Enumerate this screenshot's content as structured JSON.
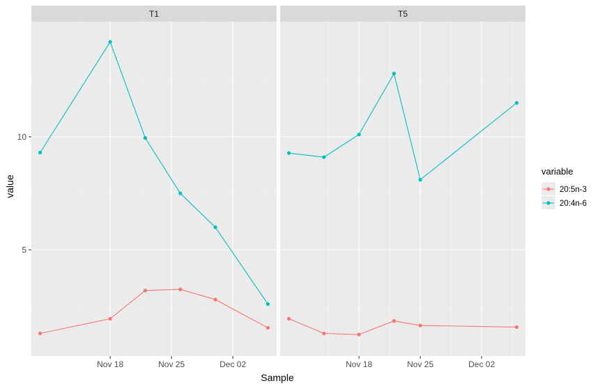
{
  "chart_data": {
    "type": "line",
    "xlabel": "Sample",
    "ylabel": "value",
    "legend_title": "variable",
    "legend_position": "right",
    "grid": true,
    "x_type": "date",
    "xlim": [
      "2021-11-09",
      "2021-12-07"
    ],
    "ylim": [
      0.3,
      15.1
    ],
    "x_ticks": [
      {
        "date": "2021-11-18",
        "label": "Nov 18"
      },
      {
        "date": "2021-11-25",
        "label": "Nov 25"
      },
      {
        "date": "2021-12-02",
        "label": "Dec 02"
      }
    ],
    "y_ticks": [
      {
        "value": 5,
        "label": "5"
      },
      {
        "value": 10,
        "label": "10"
      }
    ],
    "panels": [
      {
        "label": "T1",
        "series": [
          {
            "name": "20:5n-3",
            "color": "#F8766D",
            "points": [
              {
                "x": "2021-11-10",
                "y": 1.3
              },
              {
                "x": "2021-11-18",
                "y": 1.95
              },
              {
                "x": "2021-11-22",
                "y": 3.2
              },
              {
                "x": "2021-11-26",
                "y": 3.25
              },
              {
                "x": "2021-11-30",
                "y": 2.8
              },
              {
                "x": "2021-12-06",
                "y": 1.55
              }
            ]
          },
          {
            "name": "20:4n-6",
            "color": "#00BFC4",
            "points": [
              {
                "x": "2021-11-10",
                "y": 9.3
              },
              {
                "x": "2021-11-18",
                "y": 14.2
              },
              {
                "x": "2021-11-22",
                "y": 9.95
              },
              {
                "x": "2021-11-26",
                "y": 7.5
              },
              {
                "x": "2021-11-30",
                "y": 6.0
              },
              {
                "x": "2021-12-06",
                "y": 2.6
              }
            ]
          }
        ]
      },
      {
        "label": "T5",
        "series": [
          {
            "name": "20:5n-3",
            "color": "#F8766D",
            "points": [
              {
                "x": "2021-11-10",
                "y": 1.95
              },
              {
                "x": "2021-11-14",
                "y": 1.3
              },
              {
                "x": "2021-11-18",
                "y": 1.25
              },
              {
                "x": "2021-11-22",
                "y": 1.85
              },
              {
                "x": "2021-11-25",
                "y": 1.65
              },
              {
                "x": "2021-12-06",
                "y": 1.58
              }
            ]
          },
          {
            "name": "20:4n-6",
            "color": "#00BFC4",
            "points": [
              {
                "x": "2021-11-10",
                "y": 9.28
              },
              {
                "x": "2021-11-14",
                "y": 9.1
              },
              {
                "x": "2021-11-18",
                "y": 10.1
              },
              {
                "x": "2021-11-22",
                "y": 12.8
              },
              {
                "x": "2021-11-25",
                "y": 8.1
              },
              {
                "x": "2021-12-06",
                "y": 11.5
              }
            ]
          }
        ]
      }
    ]
  }
}
